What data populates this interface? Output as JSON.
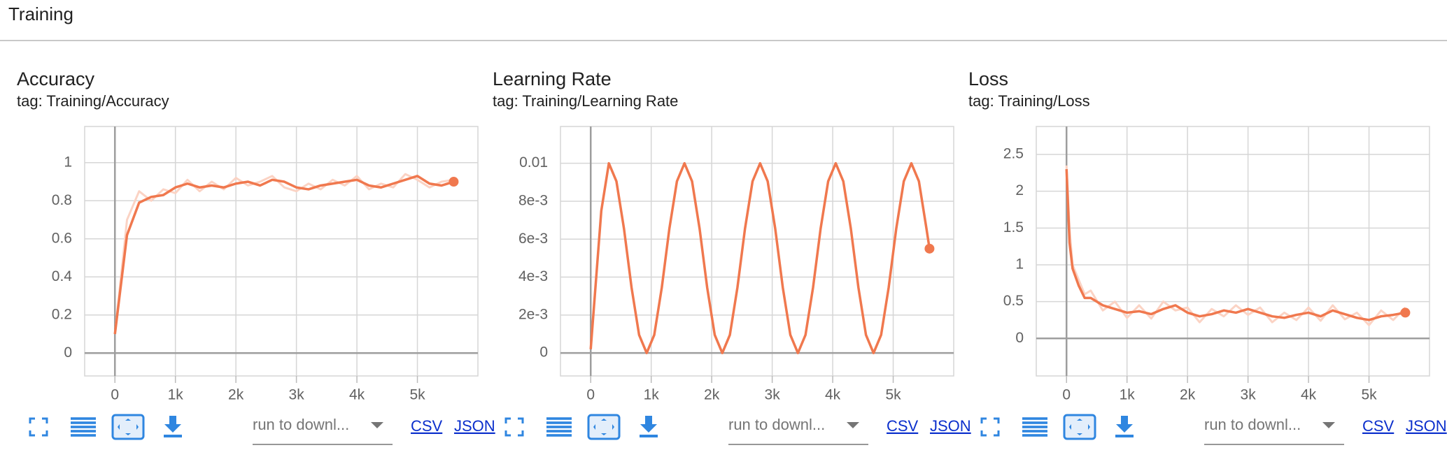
{
  "header": {
    "title": "Training"
  },
  "chart_data": [
    {
      "type": "line",
      "title": "Accuracy",
      "subtitle": "tag: Training/Accuracy",
      "x": [
        0,
        200,
        400,
        600,
        800,
        1000,
        1200,
        1400,
        1600,
        1800,
        2000,
        2200,
        2400,
        2600,
        2800,
        3000,
        3200,
        3400,
        3600,
        3800,
        4000,
        4200,
        4400,
        4600,
        4800,
        5000,
        5200,
        5400,
        5600
      ],
      "series": [
        {
          "color": "#fbd3c4",
          "values": [
            0.1,
            0.7,
            0.85,
            0.8,
            0.86,
            0.84,
            0.91,
            0.85,
            0.9,
            0.86,
            0.92,
            0.88,
            0.9,
            0.93,
            0.87,
            0.85,
            0.89,
            0.86,
            0.91,
            0.88,
            0.93,
            0.86,
            0.89,
            0.87,
            0.94,
            0.91,
            0.87,
            0.9,
            0.91
          ]
        },
        {
          "color": "#f0784e",
          "values": [
            0.1,
            0.62,
            0.79,
            0.82,
            0.83,
            0.87,
            0.89,
            0.87,
            0.88,
            0.87,
            0.89,
            0.9,
            0.88,
            0.91,
            0.9,
            0.87,
            0.86,
            0.88,
            0.89,
            0.9,
            0.91,
            0.88,
            0.87,
            0.89,
            0.91,
            0.93,
            0.89,
            0.88,
            0.9
          ]
        }
      ],
      "xlim": [
        -500,
        6000
      ],
      "xticks": [
        0,
        {
          "value": 1000,
          "label": "1k"
        },
        {
          "value": 2000,
          "label": "2k"
        },
        {
          "value": 3000,
          "label": "3k"
        },
        {
          "value": 4000,
          "label": "4k"
        },
        {
          "value": 5000,
          "label": "5k"
        }
      ],
      "ylim": [
        -0.12,
        1.19
      ],
      "yticks": [
        0,
        0.2,
        0.4,
        0.6,
        0.8,
        1
      ],
      "grid": true
    },
    {
      "type": "line",
      "title": "Learning Rate",
      "subtitle": "tag: Training/Learning Rate",
      "x": [
        0,
        175,
        300,
        425,
        550,
        675,
        800,
        925,
        1050,
        1175,
        1300,
        1425,
        1550,
        1675,
        1800,
        1925,
        2050,
        2175,
        2300,
        2425,
        2550,
        2675,
        2800,
        2925,
        3050,
        3175,
        3300,
        3425,
        3550,
        3675,
        3800,
        3925,
        4050,
        4175,
        4300,
        4425,
        4550,
        4675,
        4800,
        4925,
        5050,
        5175,
        5300,
        5425,
        5550,
        5600
      ],
      "series": [
        {
          "color": "#f0784e",
          "values": [
            0.0002,
            0.0075,
            0.01,
            0.00905,
            0.00655,
            0.00345,
            0.00095,
            0,
            0.00095,
            0.00345,
            0.00655,
            0.00905,
            0.01,
            0.00905,
            0.00655,
            0.00345,
            0.00095,
            0,
            0.00095,
            0.00345,
            0.00655,
            0.00905,
            0.01,
            0.00905,
            0.00655,
            0.00345,
            0.00095,
            0,
            0.00095,
            0.00345,
            0.00655,
            0.00905,
            0.01,
            0.00905,
            0.00655,
            0.00345,
            0.00095,
            0,
            0.00095,
            0.00345,
            0.00655,
            0.00905,
            0.01,
            0.00905,
            0.00655,
            0.0055
          ]
        }
      ],
      "xlim": [
        -500,
        6000
      ],
      "xticks": [
        0,
        {
          "value": 1000,
          "label": "1k"
        },
        {
          "value": 2000,
          "label": "2k"
        },
        {
          "value": 3000,
          "label": "3k"
        },
        {
          "value": 4000,
          "label": "4k"
        },
        {
          "value": 5000,
          "label": "5k"
        }
      ],
      "ylim": [
        -0.00121,
        0.01194
      ],
      "yticks": [
        0,
        {
          "value": 0.002,
          "label": "2e-3"
        },
        {
          "value": 0.004,
          "label": "4e-3"
        },
        {
          "value": 0.006,
          "label": "6e-3"
        },
        {
          "value": 0.008,
          "label": "8e-3"
        },
        0.01
      ],
      "grid": true
    },
    {
      "type": "line",
      "title": "Loss",
      "subtitle": "tag: Training/Loss",
      "x": [
        0,
        50,
        100,
        200,
        300,
        400,
        600,
        800,
        1000,
        1200,
        1400,
        1600,
        1800,
        2000,
        2200,
        2400,
        2600,
        2800,
        3000,
        3200,
        3400,
        3600,
        3800,
        4000,
        4200,
        4400,
        4600,
        4800,
        5000,
        5200,
        5400,
        5600
      ],
      "series": [
        {
          "color": "#fbd3c4",
          "values": [
            2.35,
            1.5,
            1.0,
            0.8,
            0.6,
            0.65,
            0.38,
            0.5,
            0.28,
            0.45,
            0.27,
            0.5,
            0.38,
            0.42,
            0.22,
            0.4,
            0.3,
            0.45,
            0.32,
            0.42,
            0.22,
            0.35,
            0.25,
            0.42,
            0.24,
            0.45,
            0.26,
            0.35,
            0.18,
            0.38,
            0.25,
            0.42
          ]
        },
        {
          "color": "#f0784e",
          "values": [
            2.3,
            1.3,
            0.95,
            0.72,
            0.55,
            0.55,
            0.45,
            0.4,
            0.35,
            0.37,
            0.33,
            0.4,
            0.45,
            0.35,
            0.3,
            0.33,
            0.38,
            0.35,
            0.4,
            0.35,
            0.3,
            0.28,
            0.32,
            0.35,
            0.3,
            0.38,
            0.33,
            0.28,
            0.25,
            0.3,
            0.32,
            0.35
          ]
        }
      ],
      "xlim": [
        -500,
        6000
      ],
      "xticks": [
        0,
        {
          "value": 1000,
          "label": "1k"
        },
        {
          "value": 2000,
          "label": "2k"
        },
        {
          "value": 3000,
          "label": "3k"
        },
        {
          "value": 4000,
          "label": "4k"
        },
        {
          "value": 5000,
          "label": "5k"
        }
      ],
      "ylim": [
        -0.51,
        2.88
      ],
      "yticks": [
        0,
        0.5,
        1,
        1.5,
        2,
        2.5
      ],
      "grid": true
    }
  ],
  "toolbars": [
    {
      "select": "run to downl...",
      "links": [
        "CSV",
        "JSON"
      ]
    },
    {
      "select": "run to downl...",
      "links": [
        "CSV",
        "JSON"
      ]
    },
    {
      "select": "run to downl...",
      "links": [
        "CSV",
        "JSON"
      ]
    }
  ]
}
